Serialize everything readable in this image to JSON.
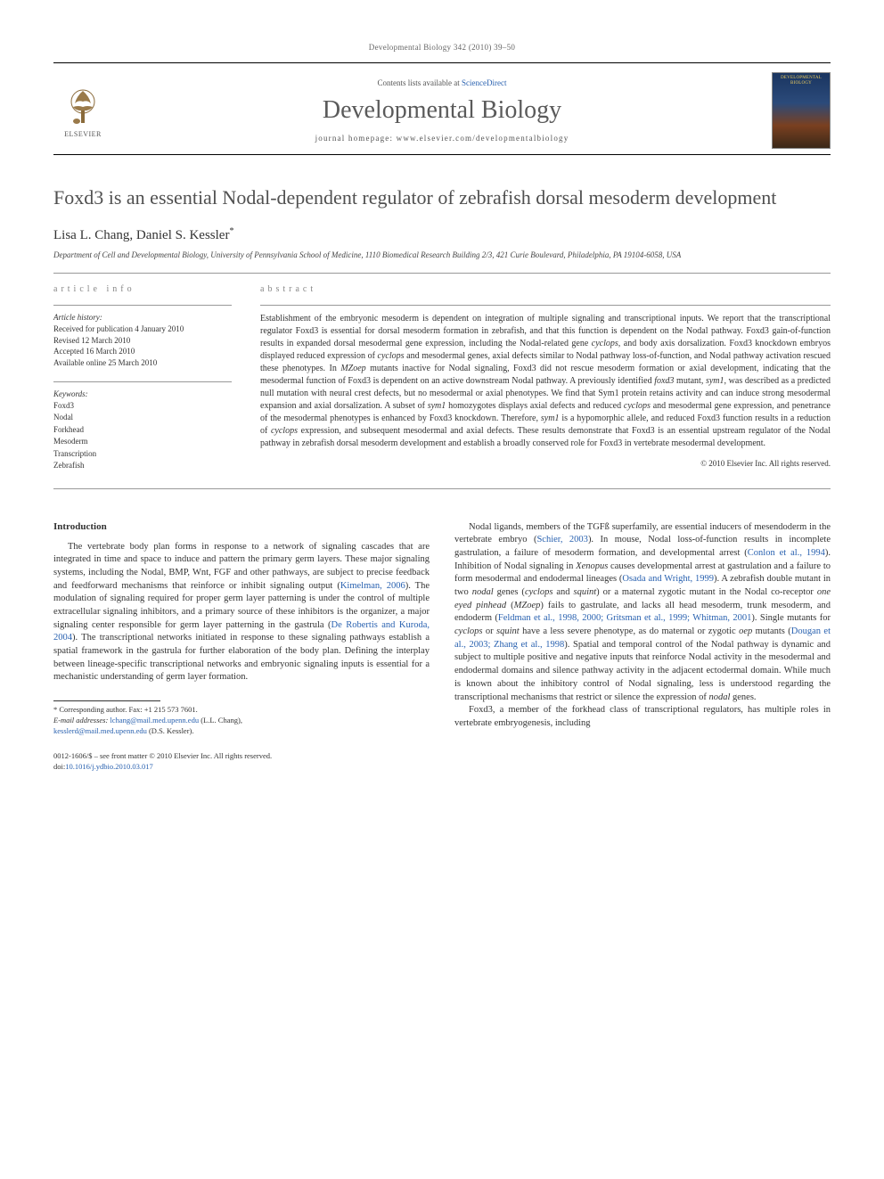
{
  "running_header": "Developmental Biology 342 (2010) 39–50",
  "masthead": {
    "contents_prefix": "Contents lists available at ",
    "contents_link": "ScienceDirect",
    "journal_name": "Developmental Biology",
    "homepage_prefix": "journal homepage: ",
    "homepage_url": "www.elsevier.com/developmentalbiology",
    "elsevier": "ELSEVIER",
    "cover_label_top": "DEVELOPMENTAL",
    "cover_label_bottom": "BIOLOGY"
  },
  "article": {
    "title": "Foxd3 is an essential Nodal-dependent regulator of zebrafish dorsal mesoderm development",
    "authors_html": "Lisa L. Chang, Daniel S. Kessler",
    "author_marker": "*",
    "affiliation": "Department of Cell and Developmental Biology, University of Pennsylvania School of Medicine, 1110 Biomedical Research Building 2/3, 421 Curie Boulevard, Philadelphia, PA 19104-6058, USA"
  },
  "info": {
    "heading": "article info",
    "history_label": "Article history:",
    "history": {
      "received": "Received for publication 4 January 2010",
      "revised": "Revised 12 March 2010",
      "accepted": "Accepted 16 March 2010",
      "online": "Available online 25 March 2010"
    },
    "keywords_label": "Keywords:",
    "keywords": [
      "Foxd3",
      "Nodal",
      "Forkhead",
      "Mesoderm",
      "Transcription",
      "Zebrafish"
    ]
  },
  "abstract": {
    "heading": "abstract",
    "text": "Establishment of the embryonic mesoderm is dependent on integration of multiple signaling and transcriptional inputs. We report that the transcriptional regulator Foxd3 is essential for dorsal mesoderm formation in zebrafish, and that this function is dependent on the Nodal pathway. Foxd3 gain-of-function results in expanded dorsal mesodermal gene expression, including the Nodal-related gene <em>cyclops</em>, and body axis dorsalization. Foxd3 knockdown embryos displayed reduced expression of <em>cyclops</em> and mesodermal genes, axial defects similar to Nodal pathway loss-of-function, and Nodal pathway activation rescued these phenotypes. In <em>MZoep</em> mutants inactive for Nodal signaling, Foxd3 did not rescue mesoderm formation or axial development, indicating that the mesodermal function of Foxd3 is dependent on an active downstream Nodal pathway. A previously identified <em>foxd3</em> mutant, <em>sym1</em>, was described as a predicted null mutation with neural crest defects, but no mesodermal or axial phenotypes. We find that Sym1 protein retains activity and can induce strong mesodermal expansion and axial dorsalization. A subset of <em>sym1</em> homozygotes displays axial defects and reduced <em>cyclops</em> and mesodermal gene expression, and penetrance of the mesodermal phenotypes is enhanced by Foxd3 knockdown. Therefore, <em>sym1</em> is a hypomorphic allele, and reduced Foxd3 function results in a reduction of <em>cyclops</em> expression, and subsequent mesodermal and axial defects. These results demonstrate that Foxd3 is an essential upstream regulator of the Nodal pathway in zebrafish dorsal mesoderm development and establish a broadly conserved role for Foxd3 in vertebrate mesodermal development.",
    "copyright": "© 2010 Elsevier Inc. All rights reserved."
  },
  "body": {
    "intro_heading": "Introduction",
    "col1_p1": "The vertebrate body plan forms in response to a network of signaling cascades that are integrated in time and space to induce and pattern the primary germ layers. These major signaling systems, including the Nodal, BMP, Wnt, FGF and other pathways, are subject to precise feedback and feedforward mechanisms that reinforce or inhibit signaling output (<a class=\"ref\" href=\"#\" data-name=\"ref-kimelman-2006\" data-interactable=\"true\">Kimelman, 2006</a>). The modulation of signaling required for proper germ layer patterning is under the control of multiple extracellular signaling inhibitors, and a primary source of these inhibitors is the organizer, a major signaling center responsible for germ layer patterning in the gastrula (<a class=\"ref\" href=\"#\" data-name=\"ref-derobertis-kuroda-2004\" data-interactable=\"true\">De Robertis and Kuroda, 2004</a>). The transcriptional networks initiated in response to these signaling pathways establish a spatial framework in the gastrula for further elaboration of the body plan. Defining the interplay between lineage-specific transcriptional networks and embryonic signaling inputs is essential for a mechanistic understanding of germ layer formation.",
    "col2_p1": "Nodal ligands, members of the TGFß superfamily, are essential inducers of mesendoderm in the vertebrate embryo (<a class=\"ref\" href=\"#\" data-name=\"ref-schier-2003\" data-interactable=\"true\">Schier, 2003</a>). In mouse, Nodal loss-of-function results in incomplete gastrulation, a failure of mesoderm formation, and developmental arrest (<a class=\"ref\" href=\"#\" data-name=\"ref-conlon-1994\" data-interactable=\"true\">Conlon et al., 1994</a>). Inhibition of Nodal signaling in <em>Xenopus</em> causes developmental arrest at gastrulation and a failure to form mesodermal and endodermal lineages (<a class=\"ref\" href=\"#\" data-name=\"ref-osada-wright-1999\" data-interactable=\"true\">Osada and Wright, 1999</a>). A zebrafish double mutant in two <em>nodal</em> genes (<em>cyclops</em> and <em>squint</em>) or a maternal zygotic mutant in the Nodal co-receptor <em>one eyed pinhead</em> (<em>MZoep</em>) fails to gastrulate, and lacks all head mesoderm, trunk mesoderm, and endoderm (<a class=\"ref\" href=\"#\" data-name=\"ref-feldman-etal\" data-interactable=\"true\">Feldman et al., 1998, 2000; Gritsman et al., 1999; Whitman, 2001</a>). Single mutants for <em>cyclops</em> or <em>squint</em> have a less severe phenotype, as do maternal or zygotic <em>oep</em> mutants (<a class=\"ref\" href=\"#\" data-name=\"ref-dougan-zhang\" data-interactable=\"true\">Dougan et al., 2003; Zhang et al., 1998</a>). Spatial and temporal control of the Nodal pathway is dynamic and subject to multiple positive and negative inputs that reinforce Nodal activity in the mesodermal and endodermal domains and silence pathway activity in the adjacent ectodermal domain. While much is known about the inhibitory control of Nodal signaling, less is understood regarding the transcriptional mechanisms that restrict or silence the expression of <em>nodal</em> genes.",
    "col2_p2": "Foxd3, a member of the forkhead class of transcriptional regulators, has multiple roles in vertebrate embryogenesis, including"
  },
  "footnotes": {
    "corresponding_label": "* Corresponding author. Fax: +1 215 573 7601.",
    "email_label": "E-mail addresses:",
    "email1": "lchang@mail.med.upenn.edu",
    "email1_who": " (L.L. Chang),",
    "email2": "kesslerd@mail.med.upenn.edu",
    "email2_who": " (D.S. Kessler)."
  },
  "footer": {
    "line1": "0012-1606/$ – see front matter © 2010 Elsevier Inc. All rights reserved.",
    "doi_prefix": "doi:",
    "doi": "10.1016/j.ydbio.2010.03.017"
  },
  "colors": {
    "link": "#2a62b0",
    "text": "#333333",
    "muted": "#666666",
    "journal_gray": "#5a5a5a"
  }
}
